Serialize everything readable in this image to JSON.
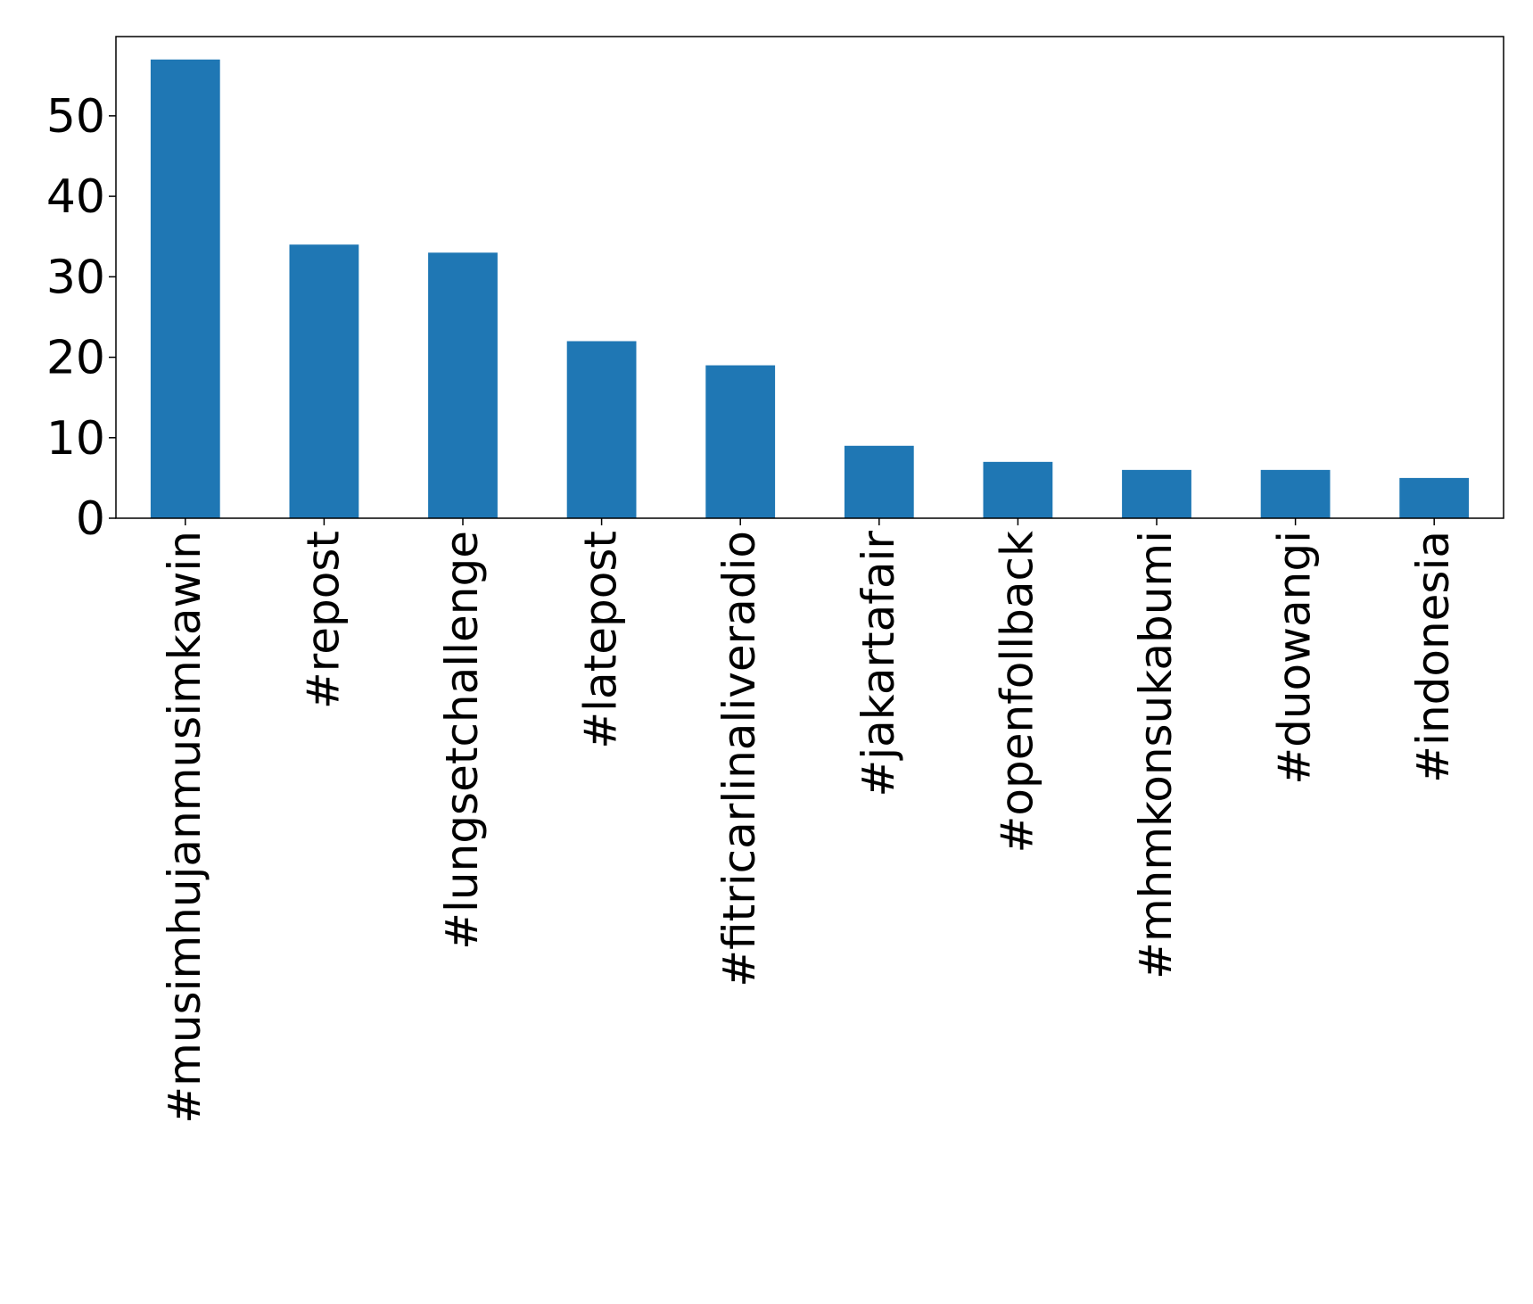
{
  "chart_data": {
    "type": "bar",
    "title": "",
    "xlabel": "",
    "ylabel": "",
    "categories": [
      "#musimhujanmusimkawin",
      "#repost",
      "#lungsetchallenge",
      "#latepost",
      "#fitricarlinaliveradio",
      "#jakartafair",
      "#openfollback",
      "#mhmkonsukabumi",
      "#duowangi",
      "#indonesia"
    ],
    "values": [
      57,
      34,
      33,
      22,
      19,
      9,
      7,
      6,
      6,
      5
    ],
    "ylim": [
      0,
      59.85
    ],
    "yticks": [
      0,
      10,
      20,
      30,
      40,
      50
    ],
    "bar_color": "#1f77b4",
    "grid": false,
    "legend": "none"
  }
}
